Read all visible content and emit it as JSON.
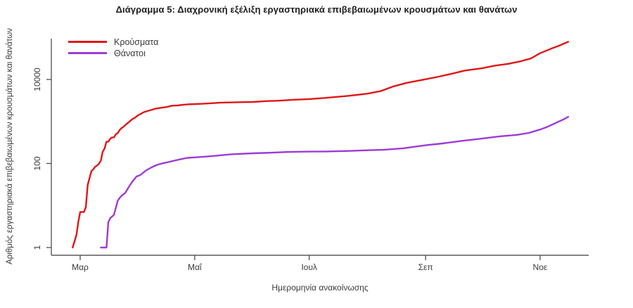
{
  "chart_data": {
    "type": "line",
    "title": "Διάγραμμα 5: Διαχρονική εξέλιξη εργαστηριακά επιβεβαιωμένων κρουσμάτων και θανάτων",
    "xlabel": "Ημερομηνία ανακοίνωσης",
    "ylabel": "Αριθμός εργαστηριακά επιβεβαιωμένων κρουσμάτων και θανάτων",
    "y_scale": "log10",
    "ylim": [
      1,
      100000
    ],
    "x_range": [
      "2020-02-26",
      "2020-11-16"
    ],
    "grid": false,
    "legend_position": "top-left",
    "axis_color": "#5a5a5a",
    "x_ticks": [
      {
        "label": "Μαρ",
        "date": "2020-03-01"
      },
      {
        "label": "Μαΐ",
        "date": "2020-05-01"
      },
      {
        "label": "Ιουλ",
        "date": "2020-07-01"
      },
      {
        "label": "Σεπ",
        "date": "2020-09-01"
      },
      {
        "label": "Νοε",
        "date": "2020-11-01"
      }
    ],
    "y_ticks": [
      {
        "label": "1",
        "value": 1
      },
      {
        "label": "100",
        "value": 100
      },
      {
        "label": "10000",
        "value": 10000
      }
    ],
    "series": [
      {
        "name": "Κρούσματα",
        "color": "#e01717",
        "points": [
          [
            "2020-02-26",
            1
          ],
          [
            "2020-02-28",
            2
          ],
          [
            "2020-02-29",
            4
          ],
          [
            "2020-03-01",
            7
          ],
          [
            "2020-03-03",
            7
          ],
          [
            "2020-03-04",
            9
          ],
          [
            "2020-03-05",
            31
          ],
          [
            "2020-03-06",
            45
          ],
          [
            "2020-03-07",
            66
          ],
          [
            "2020-03-08",
            73
          ],
          [
            "2020-03-09",
            84
          ],
          [
            "2020-03-10",
            89
          ],
          [
            "2020-03-11",
            99
          ],
          [
            "2020-03-12",
            117
          ],
          [
            "2020-03-13",
            190
          ],
          [
            "2020-03-14",
            228
          ],
          [
            "2020-03-15",
            331
          ],
          [
            "2020-03-16",
            331
          ],
          [
            "2020-03-17",
            387
          ],
          [
            "2020-03-18",
            418
          ],
          [
            "2020-03-19",
            418
          ],
          [
            "2020-03-20",
            495
          ],
          [
            "2020-03-21",
            530
          ],
          [
            "2020-03-22",
            624
          ],
          [
            "2020-03-23",
            695
          ],
          [
            "2020-03-24",
            743
          ],
          [
            "2020-03-25",
            821
          ],
          [
            "2020-03-26",
            892
          ],
          [
            "2020-03-27",
            966
          ],
          [
            "2020-03-28",
            1061
          ],
          [
            "2020-03-29",
            1156
          ],
          [
            "2020-03-30",
            1212
          ],
          [
            "2020-03-31",
            1314
          ],
          [
            "2020-04-01",
            1415
          ],
          [
            "2020-04-04",
            1673
          ],
          [
            "2020-04-07",
            1832
          ],
          [
            "2020-04-10",
            2011
          ],
          [
            "2020-04-13",
            2114
          ],
          [
            "2020-04-16",
            2207
          ],
          [
            "2020-04-19",
            2374
          ],
          [
            "2020-04-22",
            2408
          ],
          [
            "2020-04-25",
            2506
          ],
          [
            "2020-04-28",
            2566
          ],
          [
            "2020-05-01",
            2591
          ],
          [
            "2020-05-05",
            2632
          ],
          [
            "2020-05-10",
            2716
          ],
          [
            "2020-05-15",
            2819
          ],
          [
            "2020-05-20",
            2840
          ],
          [
            "2020-05-25",
            2882
          ],
          [
            "2020-06-01",
            2917
          ],
          [
            "2020-06-08",
            3049
          ],
          [
            "2020-06-15",
            3121
          ],
          [
            "2020-06-22",
            3287
          ],
          [
            "2020-07-01",
            3409
          ],
          [
            "2020-07-08",
            3589
          ],
          [
            "2020-07-15",
            3826
          ],
          [
            "2020-07-22",
            4077
          ],
          [
            "2020-08-01",
            4587
          ],
          [
            "2020-08-08",
            5270
          ],
          [
            "2020-08-15",
            6858
          ],
          [
            "2020-08-22",
            8322
          ],
          [
            "2020-09-01",
            10134
          ],
          [
            "2020-09-08",
            11663
          ],
          [
            "2020-09-15",
            13730
          ],
          [
            "2020-09-22",
            16286
          ],
          [
            "2020-10-01",
            18475
          ],
          [
            "2020-10-08",
            21381
          ],
          [
            "2020-10-15",
            23495
          ],
          [
            "2020-10-22",
            27334
          ],
          [
            "2020-10-27",
            31496
          ],
          [
            "2020-11-01",
            42080
          ],
          [
            "2020-11-05",
            49807
          ],
          [
            "2020-11-08",
            56698
          ],
          [
            "2020-11-11",
            63321
          ],
          [
            "2020-11-14",
            72510
          ],
          [
            "2020-11-16",
            78825
          ]
        ]
      },
      {
        "name": "Θάνατοι",
        "color": "#9e3bd6",
        "points": [
          [
            "2020-03-12",
            1
          ],
          [
            "2020-03-15",
            1
          ],
          [
            "2020-03-16",
            4
          ],
          [
            "2020-03-17",
            5
          ],
          [
            "2020-03-19",
            6
          ],
          [
            "2020-03-21",
            13
          ],
          [
            "2020-03-22",
            15
          ],
          [
            "2020-03-23",
            17
          ],
          [
            "2020-03-25",
            20
          ],
          [
            "2020-03-27",
            28
          ],
          [
            "2020-03-29",
            38
          ],
          [
            "2020-03-31",
            49
          ],
          [
            "2020-04-02",
            53
          ],
          [
            "2020-04-05",
            68
          ],
          [
            "2020-04-08",
            81
          ],
          [
            "2020-04-11",
            93
          ],
          [
            "2020-04-14",
            101
          ],
          [
            "2020-04-17",
            108
          ],
          [
            "2020-04-20",
            116
          ],
          [
            "2020-04-23",
            125
          ],
          [
            "2020-04-27",
            136
          ],
          [
            "2020-05-01",
            140
          ],
          [
            "2020-05-07",
            146
          ],
          [
            "2020-05-14",
            155
          ],
          [
            "2020-05-21",
            166
          ],
          [
            "2020-06-01",
            175
          ],
          [
            "2020-06-10",
            180
          ],
          [
            "2020-06-20",
            188
          ],
          [
            "2020-07-01",
            192
          ],
          [
            "2020-07-10",
            193
          ],
          [
            "2020-07-20",
            198
          ],
          [
            "2020-08-01",
            206
          ],
          [
            "2020-08-10",
            213
          ],
          [
            "2020-08-20",
            230
          ],
          [
            "2020-09-01",
            271
          ],
          [
            "2020-09-10",
            300
          ],
          [
            "2020-09-20",
            344
          ],
          [
            "2020-10-01",
            391
          ],
          [
            "2020-10-10",
            439
          ],
          [
            "2020-10-20",
            482
          ],
          [
            "2020-10-26",
            534
          ],
          [
            "2020-11-01",
            642
          ],
          [
            "2020-11-05",
            749
          ],
          [
            "2020-11-08",
            866
          ],
          [
            "2020-11-11",
            997
          ],
          [
            "2020-11-14",
            1150
          ],
          [
            "2020-11-16",
            1288
          ]
        ]
      }
    ]
  }
}
